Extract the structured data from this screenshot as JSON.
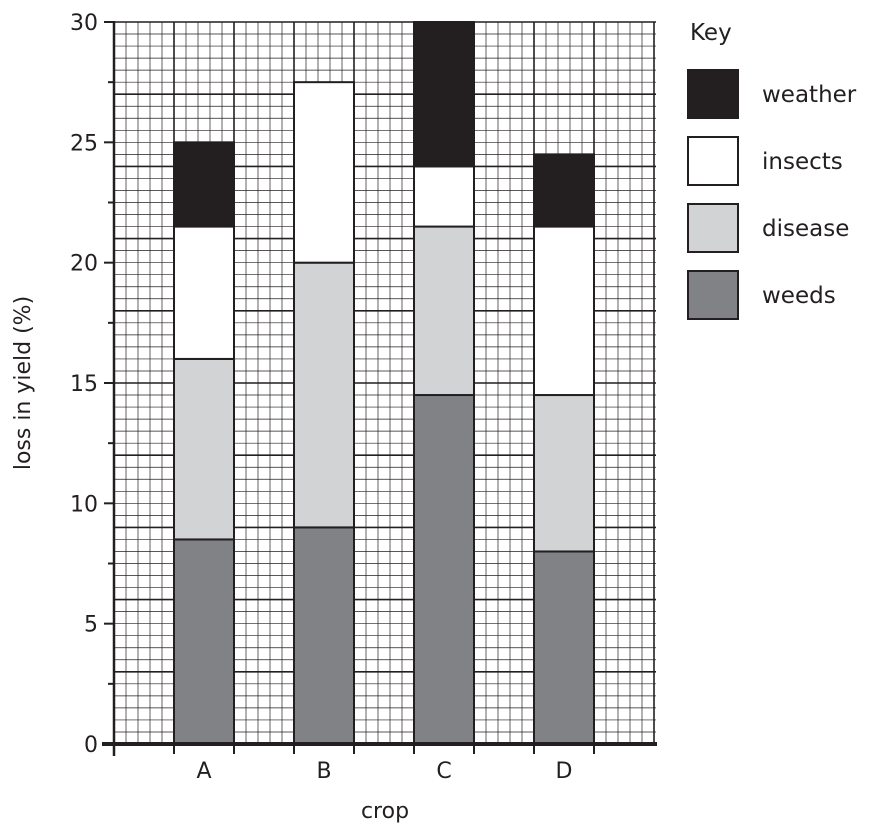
{
  "chart_data": {
    "type": "bar",
    "stacked": true,
    "categories": [
      "A",
      "B",
      "C",
      "D"
    ],
    "series": [
      {
        "name": "weeds",
        "color": "#808285",
        "values": [
          8.5,
          9.0,
          14.5,
          8.0
        ]
      },
      {
        "name": "disease",
        "color": "#d1d3d4",
        "values": [
          7.5,
          11.0,
          7.0,
          6.5
        ]
      },
      {
        "name": "insects",
        "color": "#ffffff",
        "values": [
          5.5,
          7.5,
          2.5,
          7.0
        ]
      },
      {
        "name": "weather",
        "color": "#231f20",
        "values": [
          3.5,
          0.0,
          6.0,
          3.0
        ]
      }
    ],
    "xlabel": "crop",
    "ylabel": "loss in yield (%)",
    "ylim": [
      0,
      30
    ],
    "yticks": [
      "0",
      "5",
      "10",
      "15",
      "20",
      "25",
      "30"
    ],
    "grid": true,
    "legend": {
      "title": "Key",
      "placement": "right",
      "order": [
        "weather",
        "insects",
        "disease",
        "weeds"
      ]
    }
  }
}
